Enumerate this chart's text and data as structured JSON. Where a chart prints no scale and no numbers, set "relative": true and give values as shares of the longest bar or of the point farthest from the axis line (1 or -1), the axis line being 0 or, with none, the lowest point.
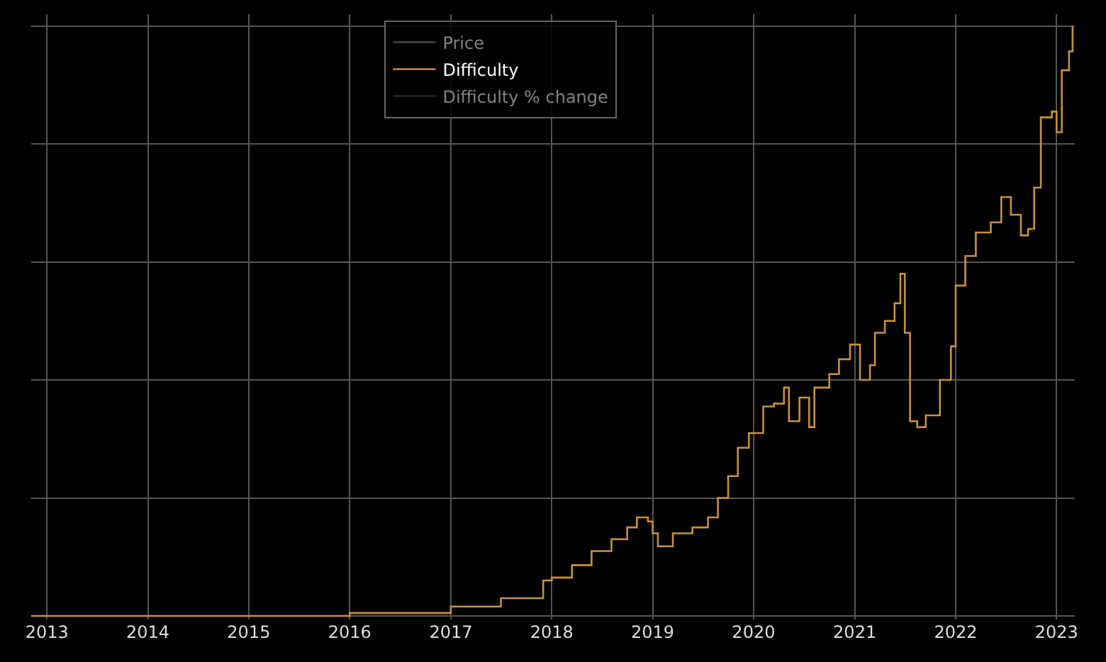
{
  "chart_data": {
    "type": "step",
    "relative": true,
    "grid": true,
    "legend": "top",
    "xlim": [
      "2012-11-05",
      "2023-03-08"
    ],
    "xticks": [
      "2013",
      "2014",
      "2015",
      "2016",
      "2017",
      "2018",
      "2019",
      "2020",
      "2021",
      "2022",
      "2023"
    ],
    "x": [
      "2012-11-05",
      "2016-01-01",
      "2017-01-01",
      "2017-07-01",
      "2017-12-01",
      "2018-01-01",
      "2018-03-15",
      "2018-05-25",
      "2018-08-05",
      "2018-10-01",
      "2018-11-05",
      "2018-12-15",
      "2019-01-01",
      "2019-01-20",
      "2019-03-15",
      "2019-05-25",
      "2019-07-20",
      "2019-08-25",
      "2019-10-01",
      "2019-11-05",
      "2019-12-15",
      "2020-01-01",
      "2020-02-05",
      "2020-03-15",
      "2020-04-20",
      "2020-05-08",
      "2020-06-15",
      "2020-07-20",
      "2020-08-08",
      "2020-10-01",
      "2020-11-05",
      "2020-12-15",
      "2021-01-20",
      "2021-02-25",
      "2021-03-15",
      "2021-04-20",
      "2021-05-25",
      "2021-06-15",
      "2021-07-01",
      "2021-07-20",
      "2021-08-15",
      "2021-09-15",
      "2021-11-05",
      "2021-12-15",
      "2022-01-01",
      "2022-02-05",
      "2022-03-15",
      "2022-05-08",
      "2022-06-15",
      "2022-07-20",
      "2022-08-25",
      "2022-09-20",
      "2022-10-12",
      "2022-11-05",
      "2022-12-15",
      "2023-01-01",
      "2023-01-20",
      "2023-02-15",
      "2023-02-28"
    ],
    "series": [
      {
        "name": "Price",
        "color": "#888888",
        "values": [
          null,
          null,
          null,
          null,
          null,
          null,
          null,
          null,
          null,
          null,
          null,
          null,
          null,
          null,
          null,
          null,
          null,
          null,
          null,
          null,
          null,
          null,
          null,
          null,
          null,
          null,
          null,
          null,
          null,
          null,
          null,
          null,
          null,
          null,
          null,
          null,
          null,
          null,
          null,
          null,
          null,
          null,
          null,
          null,
          null,
          null,
          null,
          null,
          null,
          null,
          null,
          null,
          null,
          null,
          null,
          null,
          null,
          null,
          null
        ]
      },
      {
        "name": "Difficulty",
        "color": "#c8913c",
        "values": [
          0,
          0.005,
          0.016,
          0.03,
          0.06,
          0.065,
          0.086,
          0.11,
          0.13,
          0.15,
          0.167,
          0.16,
          0.14,
          0.118,
          0.14,
          0.15,
          0.167,
          0.2,
          0.237,
          0.285,
          0.31,
          0.31,
          0.355,
          0.36,
          0.387,
          0.33,
          0.37,
          0.32,
          0.387,
          0.41,
          0.435,
          0.46,
          0.4,
          0.425,
          0.48,
          0.5,
          0.53,
          0.58,
          0.48,
          0.33,
          0.32,
          0.34,
          0.4,
          0.457,
          0.56,
          0.61,
          0.65,
          0.667,
          0.71,
          0.68,
          0.645,
          0.656,
          0.726,
          0.845,
          0.855,
          0.82,
          0.925,
          0.957,
          1
        ]
      },
      {
        "name": "Difficulty % change",
        "color": "#555555",
        "values": [
          null,
          null,
          null,
          null,
          null,
          null,
          null,
          null,
          null,
          null,
          null,
          null,
          null,
          null,
          null,
          null,
          null,
          null,
          null,
          null,
          null,
          null,
          null,
          null,
          null,
          null,
          null,
          null,
          null,
          null,
          null,
          null,
          null,
          null,
          null,
          null,
          null,
          null,
          null,
          null,
          null,
          null,
          null,
          null,
          null,
          null,
          null,
          null,
          null,
          null,
          null,
          null,
          null,
          null,
          null,
          null,
          null,
          null,
          null
        ]
      }
    ]
  }
}
